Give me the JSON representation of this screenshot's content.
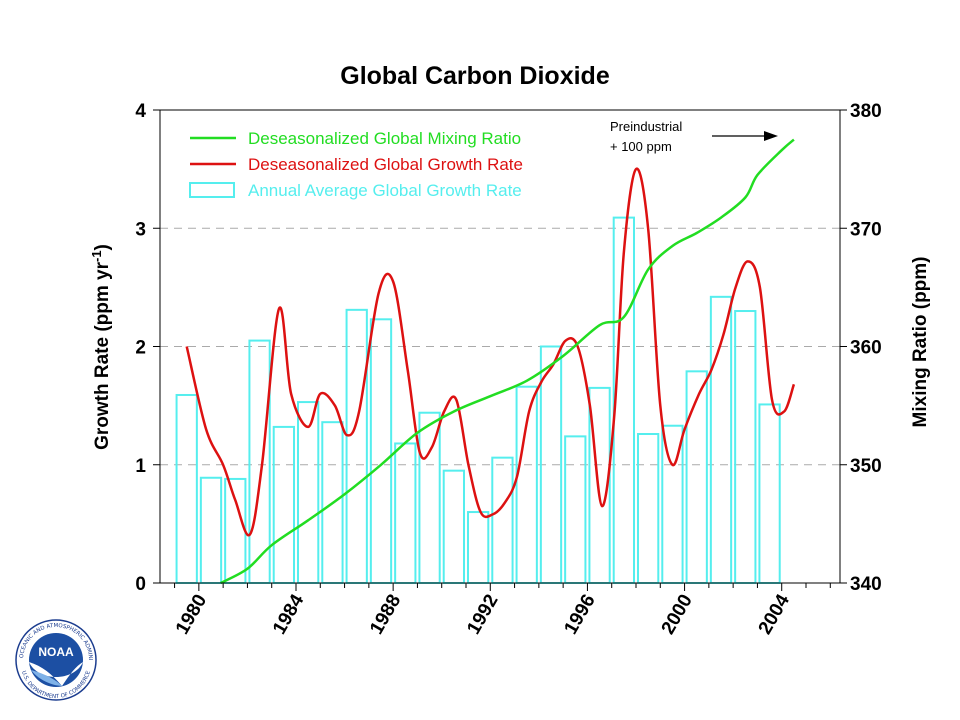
{
  "chart_data": {
    "type": "bar",
    "title": "Global Carbon Dioxide",
    "ylabel_left_main": "Growth Rate (ppm yr",
    "ylabel_left_sup": "-1",
    "ylabel_left_end": ")",
    "ylabel_right": "Mixing Ratio (ppm)",
    "ylim_left": [
      0,
      4
    ],
    "ylim_right": [
      340,
      380
    ],
    "xlim": [
      1978.4,
      2006.4
    ],
    "left_ticks": [
      {
        "value": 0,
        "label": "0"
      },
      {
        "value": 1,
        "label": "1"
      },
      {
        "value": 2,
        "label": "2"
      },
      {
        "value": 3,
        "label": "3"
      },
      {
        "value": 4,
        "label": "4"
      }
    ],
    "right_ticks": [
      {
        "value": 340,
        "label": "340"
      },
      {
        "value": 350,
        "label": "350"
      },
      {
        "value": 360,
        "label": "360"
      },
      {
        "value": 370,
        "label": "370"
      },
      {
        "value": 380,
        "label": "380"
      }
    ],
    "x_ticks": [
      {
        "value": 1980,
        "label": "1980"
      },
      {
        "value": 1984,
        "label": "1984"
      },
      {
        "value": 1988,
        "label": "1988"
      },
      {
        "value": 1992,
        "label": "1992"
      },
      {
        "value": 1996,
        "label": "1996"
      },
      {
        "value": 2000,
        "label": "2000"
      },
      {
        "value": 2004,
        "label": "2004"
      }
    ],
    "grid": "horizontal-dashed",
    "legend_position": "top-left",
    "colors": {
      "mixing_ratio": "#22dd22",
      "growth_rate": "#dd1111",
      "annual_bars": "#55eeee"
    },
    "series": [
      {
        "name": "Annual Average Global Growth Rate",
        "kind": "bar",
        "years": [
          1980,
          1981,
          1982,
          1983,
          1984,
          1985,
          1986,
          1987,
          1988,
          1989,
          1990,
          1991,
          1992,
          1993,
          1994,
          1995,
          1996,
          1997,
          1998,
          1999,
          2000,
          2001,
          2002,
          2003,
          2004
        ],
        "values": [
          1.59,
          0.89,
          0.88,
          2.05,
          1.32,
          1.53,
          1.36,
          2.31,
          2.23,
          1.18,
          1.44,
          0.95,
          0.6,
          1.06,
          1.66,
          2.0,
          1.24,
          1.65,
          3.09,
          1.26,
          1.33,
          1.79,
          2.42,
          2.3,
          1.51
        ]
      },
      {
        "name": "Deseasonalized Global Growth Rate",
        "kind": "line",
        "x": [
          1979.5,
          1980.3,
          1981.0,
          1981.5,
          1982.1,
          1982.6,
          1983.3,
          1983.8,
          1984.5,
          1985.0,
          1985.6,
          1986.1,
          1986.6,
          1987.4,
          1988.0,
          1988.6,
          1989.1,
          1989.6,
          1990.1,
          1990.6,
          1991.1,
          1991.6,
          1992.1,
          1992.6,
          1993.1,
          1993.6,
          1994.1,
          1994.6,
          1995.1,
          1995.6,
          1996.1,
          1996.6,
          1997.1,
          1997.5,
          1998.0,
          1998.5,
          1999.0,
          1999.5,
          2000.0,
          2000.6,
          2001.1,
          2001.6,
          2002.1,
          2002.6,
          2003.1,
          2003.6,
          2004.1,
          2004.5
        ],
        "values": [
          2.0,
          1.3,
          1.0,
          0.7,
          0.41,
          1.0,
          2.32,
          1.6,
          1.32,
          1.6,
          1.5,
          1.25,
          1.45,
          2.45,
          2.55,
          1.8,
          1.1,
          1.15,
          1.45,
          1.55,
          1.0,
          0.6,
          0.58,
          0.68,
          0.9,
          1.45,
          1.7,
          1.85,
          2.05,
          2.0,
          1.5,
          0.65,
          1.4,
          2.8,
          3.5,
          3.0,
          1.5,
          1.0,
          1.3,
          1.6,
          1.8,
          2.1,
          2.5,
          2.72,
          2.5,
          1.55,
          1.45,
          1.68
        ]
      },
      {
        "name": "Deseasonalized Global Mixing Ratio",
        "kind": "line",
        "axis": "right",
        "x": [
          1980.9,
          1982.0,
          1983.0,
          1984.5,
          1986.0,
          1987.5,
          1989.0,
          1990.5,
          1992.0,
          1993.5,
          1995.0,
          1996.5,
          1997.5,
          1998.5,
          1999.5,
          2000.5,
          2001.5,
          2002.5,
          2003.0,
          2004.0,
          2004.5
        ],
        "values": [
          340.0,
          341.2,
          343.2,
          345.3,
          347.5,
          350.0,
          352.7,
          354.5,
          355.8,
          357.1,
          359.2,
          361.8,
          362.5,
          366.5,
          368.5,
          369.6,
          370.9,
          372.6,
          374.5,
          376.6,
          377.5
        ]
      }
    ],
    "annotation": {
      "line1": "Preindustrial",
      "line2": "+ 100 ppm"
    }
  },
  "logo": {
    "name": "NOAA",
    "ring_text": "NATIONAL OCEANIC AND ATMOSPHERIC ADMINISTRATION",
    "ring_text_bottom": "U.S. DEPARTMENT OF COMMERCE"
  }
}
